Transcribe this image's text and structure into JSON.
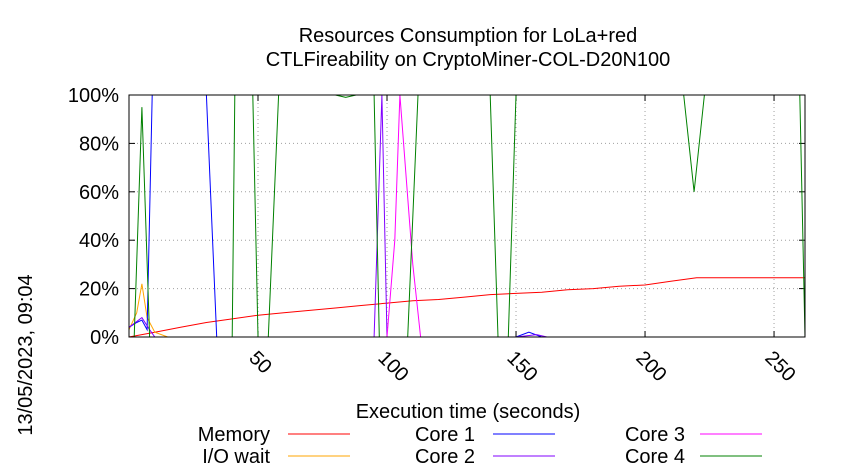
{
  "chart_data": {
    "type": "line",
    "title": [
      "Resources Consumption for LoLa+red",
      "CTLFireability on CryptoMiner-COL-D20N100"
    ],
    "xlabel": "Execution time (seconds)",
    "ylabel": "",
    "timestamp": "13/05/2023, 09:04",
    "xlim": [
      0,
      262
    ],
    "ylim": [
      0,
      100
    ],
    "x_ticks": [
      50,
      100,
      150,
      200,
      250
    ],
    "y_ticks": [
      0,
      20,
      40,
      60,
      80,
      100
    ],
    "y_tick_labels": [
      "0%",
      "20%",
      "40%",
      "60%",
      "80%",
      "100%"
    ],
    "grid": true,
    "legend_position": "bottom",
    "series": [
      {
        "name": "Memory",
        "color": "#ff0000",
        "points": [
          [
            0,
            0
          ],
          [
            5,
            1
          ],
          [
            10,
            2
          ],
          [
            20,
            4
          ],
          [
            30,
            6
          ],
          [
            40,
            7.5
          ],
          [
            50,
            9
          ],
          [
            60,
            10
          ],
          [
            70,
            11
          ],
          [
            80,
            12
          ],
          [
            90,
            13
          ],
          [
            100,
            14
          ],
          [
            110,
            15
          ],
          [
            120,
            15.5
          ],
          [
            130,
            16.5
          ],
          [
            140,
            17.5
          ],
          [
            150,
            18
          ],
          [
            160,
            18.5
          ],
          [
            170,
            19.5
          ],
          [
            180,
            20
          ],
          [
            190,
            21
          ],
          [
            200,
            21.5
          ],
          [
            210,
            23
          ],
          [
            220,
            24.5
          ],
          [
            230,
            24.5
          ],
          [
            240,
            24.5
          ],
          [
            250,
            24.5
          ],
          [
            262,
            24.5
          ]
        ]
      },
      {
        "name": "I/O wait",
        "color": "#ffa500",
        "points": [
          [
            0,
            3
          ],
          [
            3,
            10
          ],
          [
            5,
            22
          ],
          [
            7,
            8
          ],
          [
            10,
            2
          ],
          [
            15,
            0
          ],
          [
            262,
            0
          ]
        ]
      },
      {
        "name": "Core 1",
        "color": "#0000ff",
        "points": [
          [
            0,
            4
          ],
          [
            3,
            6
          ],
          [
            5,
            7
          ],
          [
            7,
            3
          ],
          [
            9,
            100
          ],
          [
            20,
            100
          ],
          [
            30,
            100
          ],
          [
            34,
            0
          ],
          [
            50,
            0
          ],
          [
            100,
            0
          ],
          [
            150,
            0
          ],
          [
            155,
            2
          ],
          [
            160,
            0
          ],
          [
            262,
            0
          ]
        ]
      },
      {
        "name": "Core 2",
        "color": "#8000ff",
        "points": [
          [
            0,
            4
          ],
          [
            5,
            8
          ],
          [
            8,
            3
          ],
          [
            10,
            0
          ],
          [
            20,
            0
          ],
          [
            30,
            0
          ],
          [
            50,
            0
          ],
          [
            80,
            0
          ],
          [
            95,
            0
          ],
          [
            98,
            100
          ],
          [
            100,
            0
          ],
          [
            110,
            0
          ],
          [
            150,
            0
          ],
          [
            158,
            1
          ],
          [
            162,
            0
          ],
          [
            262,
            0
          ]
        ]
      },
      {
        "name": "Core 3",
        "color": "#ff00ff",
        "points": [
          [
            0,
            0
          ],
          [
            100,
            0
          ],
          [
            103,
            40
          ],
          [
            105,
            100
          ],
          [
            110,
            30
          ],
          [
            113,
            0
          ],
          [
            262,
            0
          ]
        ]
      },
      {
        "name": "Core 4",
        "color": "#008000",
        "points": [
          [
            0,
            0
          ],
          [
            2,
            0
          ],
          [
            5,
            95
          ],
          [
            8,
            0
          ],
          [
            30,
            0
          ],
          [
            40,
            0
          ],
          [
            41,
            100
          ],
          [
            48,
            100
          ],
          [
            50,
            0
          ],
          [
            54,
            0
          ],
          [
            58,
            100
          ],
          [
            80,
            100
          ],
          [
            84,
            99
          ],
          [
            88,
            100
          ],
          [
            95,
            100
          ],
          [
            97,
            0
          ],
          [
            100,
            0
          ],
          [
            108,
            0
          ],
          [
            112,
            100
          ],
          [
            140,
            100
          ],
          [
            143,
            0
          ],
          [
            147,
            0
          ],
          [
            150,
            100
          ],
          [
            210,
            100
          ],
          [
            215,
            100
          ],
          [
            219,
            60
          ],
          [
            223,
            100
          ],
          [
            250,
            100
          ],
          [
            260,
            100
          ],
          [
            262,
            0
          ]
        ]
      }
    ]
  }
}
